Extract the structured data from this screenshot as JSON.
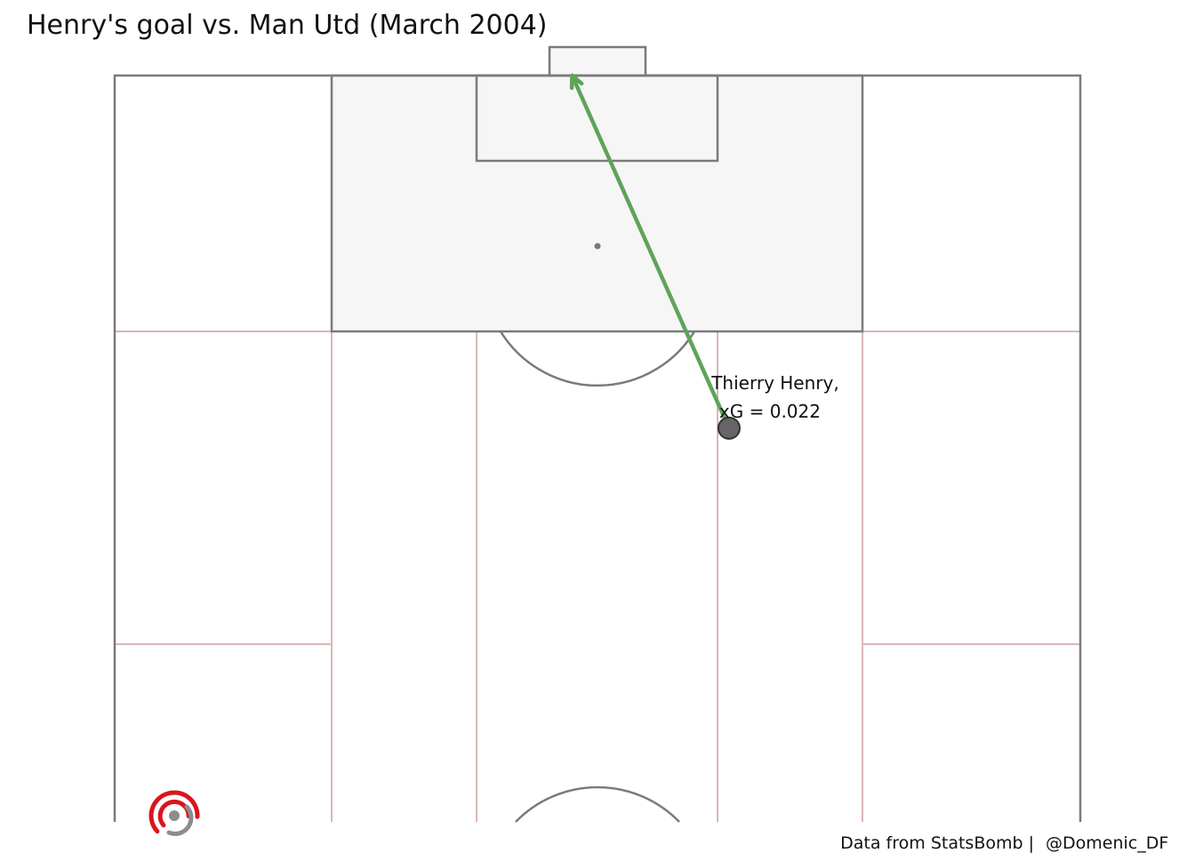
{
  "title": "Henry's goal vs. Man Utd (March 2004)",
  "footer": {
    "source": "Data from StatsBomb |",
    "handle": "@Domenic_DF"
  },
  "colors": {
    "pitch_line": "#7a7a7a",
    "zone_line": "#d9b8b8",
    "box_fill": "#f6f6f6",
    "shot_arrow": "#5fa35a",
    "shot_marker": "#666666",
    "logo_red": "#d7161e",
    "logo_grey": "#8c8c8c"
  },
  "icons": {
    "logo": "statsbomb-target-logo"
  },
  "chart_data": {
    "type": "scatter",
    "pitch": "half-pitch-vertical",
    "shots": [
      {
        "player": "Thierry Henry",
        "label_line1": "Thierry Henry,",
        "label_line2": "xG = 0.022",
        "xg": 0.022,
        "outcome": "Goal",
        "start": {
          "x": 92.6,
          "y": 50.9
        },
        "end": {
          "x": 120,
          "y": 37.9
        }
      }
    ]
  }
}
